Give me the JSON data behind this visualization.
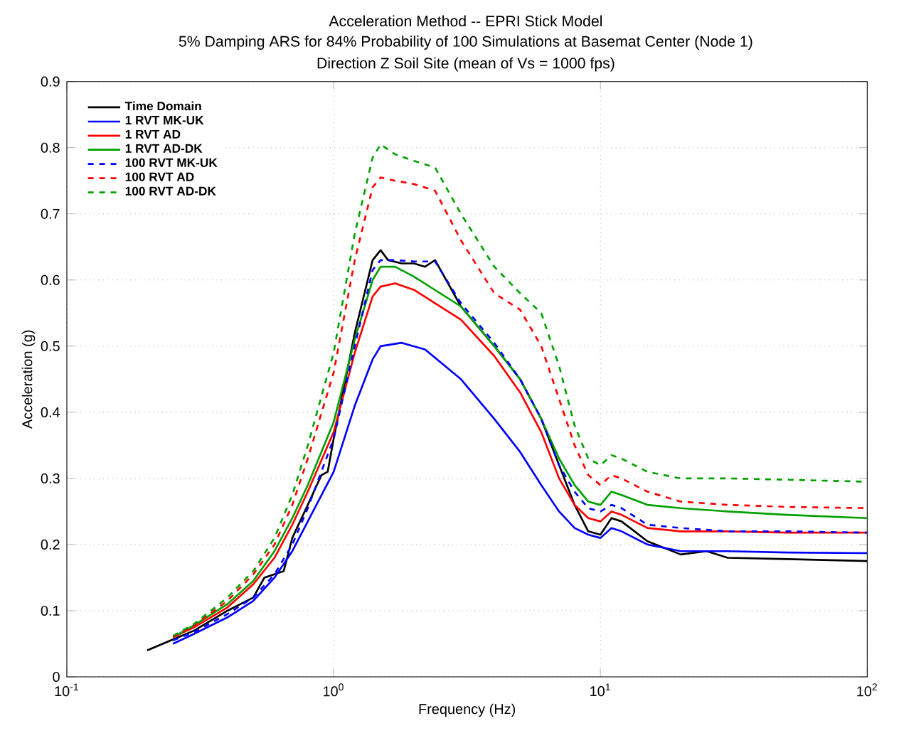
{
  "chart_data": {
    "type": "line",
    "title": "Acceleration Method -- EPRI Stick Model",
    "subtitle": "5% Damping ARS for 84% Probability of 100 Simulations at Basemat Center (Node 1)",
    "annotations": [
      "Direction Z Soil Site (mean of Vs = 1000 fps)"
    ],
    "xlabel": "Frequency (Hz)",
    "ylabel": "Acceleration (g)",
    "log": "x",
    "grid": true,
    "legend": "top left",
    "xlim": [
      0.1,
      100
    ],
    "xticks": [
      {
        "value": 0.1,
        "label": "10$^{-1}$"
      },
      {
        "value": 1,
        "label": "10$^{0}$"
      },
      {
        "value": 10,
        "label": "10$^{1}$"
      },
      {
        "value": 100,
        "label": "10$^{2}$"
      }
    ],
    "ylim": [
      0,
      0.9
    ],
    "yticks": [
      0,
      0.1,
      0.2,
      0.3,
      0.4,
      0.5,
      0.6,
      0.7,
      0.8,
      0.9
    ],
    "series": [
      {
        "name": "Time Domain",
        "color": "#000000",
        "line_style": "solid",
        "x": [
          0.2,
          0.3,
          0.4,
          0.5,
          0.55,
          0.65,
          0.7,
          0.8,
          0.9,
          0.95,
          1.0,
          1.2,
          1.4,
          1.5,
          1.6,
          1.8,
          2.0,
          2.2,
          2.4,
          3,
          4,
          5,
          6,
          7,
          8,
          9,
          10,
          11,
          12,
          15,
          20,
          25,
          30,
          50,
          100
        ],
        "values": [
          0.04,
          0.07,
          0.1,
          0.12,
          0.15,
          0.16,
          0.21,
          0.26,
          0.305,
          0.31,
          0.36,
          0.52,
          0.63,
          0.645,
          0.63,
          0.625,
          0.625,
          0.62,
          0.63,
          0.56,
          0.5,
          0.45,
          0.39,
          0.32,
          0.26,
          0.22,
          0.215,
          0.24,
          0.235,
          0.205,
          0.185,
          0.19,
          0.18,
          0.178,
          0.175
        ]
      },
      {
        "name": "1 RVT MK-UK",
        "color": "#0000ff",
        "line_style": "solid",
        "x": [
          0.25,
          0.3,
          0.4,
          0.5,
          0.6,
          0.7,
          0.8,
          1.0,
          1.2,
          1.4,
          1.5,
          1.8,
          2.2,
          3,
          4,
          5,
          6,
          7,
          8,
          9,
          10,
          11,
          12,
          15,
          20,
          30,
          50,
          100
        ],
        "values": [
          0.05,
          0.065,
          0.09,
          0.115,
          0.15,
          0.19,
          0.235,
          0.31,
          0.41,
          0.48,
          0.5,
          0.505,
          0.495,
          0.45,
          0.39,
          0.34,
          0.29,
          0.25,
          0.225,
          0.215,
          0.21,
          0.225,
          0.22,
          0.2,
          0.19,
          0.19,
          0.188,
          0.187
        ]
      },
      {
        "name": "1 RVT AD",
        "color": "#ff0000",
        "line_style": "solid",
        "x": [
          0.25,
          0.3,
          0.4,
          0.5,
          0.6,
          0.7,
          0.8,
          1.0,
          1.2,
          1.4,
          1.5,
          1.7,
          2,
          3,
          4,
          5,
          6,
          7,
          8,
          9,
          10,
          11,
          12,
          15,
          20,
          30,
          50,
          100
        ],
        "values": [
          0.06,
          0.075,
          0.105,
          0.14,
          0.18,
          0.23,
          0.28,
          0.37,
          0.49,
          0.575,
          0.59,
          0.595,
          0.585,
          0.54,
          0.485,
          0.43,
          0.37,
          0.3,
          0.26,
          0.24,
          0.235,
          0.25,
          0.245,
          0.225,
          0.22,
          0.22,
          0.218,
          0.218
        ]
      },
      {
        "name": "1 RVT AD-DK",
        "color": "#00a000",
        "line_style": "solid",
        "x": [
          0.25,
          0.3,
          0.4,
          0.5,
          0.6,
          0.7,
          0.8,
          1.0,
          1.2,
          1.4,
          1.5,
          1.7,
          2,
          3,
          4,
          5,
          6,
          7,
          8,
          9,
          10,
          11,
          12,
          15,
          20,
          30,
          50,
          100
        ],
        "values": [
          0.06,
          0.078,
          0.11,
          0.145,
          0.19,
          0.24,
          0.29,
          0.385,
          0.51,
          0.6,
          0.62,
          0.62,
          0.605,
          0.56,
          0.5,
          0.45,
          0.39,
          0.33,
          0.29,
          0.265,
          0.26,
          0.28,
          0.275,
          0.26,
          0.255,
          0.25,
          0.245,
          0.24
        ]
      },
      {
        "name": "100 RVT MK-UK",
        "color": "#0000ff",
        "line_style": "dashed",
        "x": [
          0.25,
          0.3,
          0.4,
          0.5,
          0.6,
          0.7,
          0.8,
          1.0,
          1.2,
          1.4,
          1.5,
          1.7,
          2,
          2.4,
          3,
          4,
          5,
          6,
          7,
          8,
          9,
          10,
          11,
          12,
          15,
          20,
          30,
          50,
          100
        ],
        "values": [
          0.055,
          0.068,
          0.095,
          0.12,
          0.155,
          0.2,
          0.255,
          0.36,
          0.5,
          0.615,
          0.63,
          0.63,
          0.628,
          0.628,
          0.565,
          0.505,
          0.45,
          0.39,
          0.32,
          0.28,
          0.255,
          0.25,
          0.26,
          0.255,
          0.23,
          0.225,
          0.22,
          0.22,
          0.218
        ]
      },
      {
        "name": "100 RVT AD",
        "color": "#ff0000",
        "line_style": "dashed",
        "x": [
          0.25,
          0.3,
          0.4,
          0.5,
          0.6,
          0.7,
          0.8,
          1.0,
          1.2,
          1.4,
          1.5,
          1.7,
          2,
          2.4,
          3,
          4,
          5,
          6,
          7,
          8,
          9,
          10,
          11,
          12,
          15,
          20,
          30,
          50,
          100
        ],
        "values": [
          0.06,
          0.078,
          0.115,
          0.155,
          0.2,
          0.26,
          0.33,
          0.46,
          0.63,
          0.74,
          0.755,
          0.75,
          0.745,
          0.735,
          0.66,
          0.58,
          0.555,
          0.5,
          0.42,
          0.35,
          0.305,
          0.29,
          0.305,
          0.3,
          0.28,
          0.265,
          0.26,
          0.257,
          0.255
        ]
      },
      {
        "name": "100 RVT AD-DK",
        "color": "#00a000",
        "line_style": "dashed",
        "x": [
          0.25,
          0.3,
          0.4,
          0.5,
          0.6,
          0.7,
          0.8,
          1.0,
          1.2,
          1.4,
          1.5,
          1.7,
          2,
          2.4,
          3,
          4,
          5,
          6,
          7,
          8,
          9,
          10,
          11,
          12,
          15,
          20,
          30,
          50,
          100
        ],
        "values": [
          0.062,
          0.08,
          0.12,
          0.16,
          0.21,
          0.275,
          0.35,
          0.49,
          0.67,
          0.785,
          0.805,
          0.79,
          0.78,
          0.77,
          0.7,
          0.62,
          0.58,
          0.55,
          0.47,
          0.38,
          0.33,
          0.32,
          0.335,
          0.33,
          0.31,
          0.3,
          0.3,
          0.298,
          0.295
        ]
      }
    ]
  }
}
